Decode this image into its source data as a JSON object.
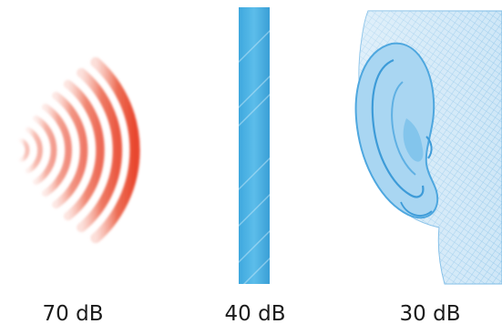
{
  "panels": [
    {
      "id": "source",
      "label": "70 dB",
      "icon": "sound-waves-icon",
      "color": "#e8432a"
    },
    {
      "id": "barrier",
      "label": "40 dB",
      "icon": "wall-barrier-icon",
      "color": "#4fb6e6"
    },
    {
      "id": "ear",
      "label": "30 dB",
      "icon": "ear-icon",
      "color": "#8ec9ec"
    }
  ]
}
